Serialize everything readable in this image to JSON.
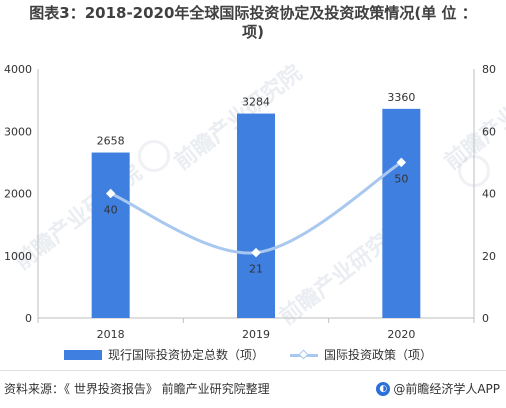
{
  "title": {
    "line1": "图表3：2018-2020年全球国际投资协定及投资政策情况(单 位 ：",
    "line2": "项)"
  },
  "watermark": {
    "text": "前瞻产业研究院"
  },
  "chart_data": {
    "type": "bar",
    "categories": [
      "2018",
      "2019",
      "2020"
    ],
    "series": [
      {
        "name": "现行国际投资协定总数（项）",
        "type": "bar",
        "axis": "left",
        "values": [
          2658,
          3284,
          3360
        ],
        "color": "#3f7fe0"
      },
      {
        "name": "国际投资政策（项）",
        "type": "line",
        "axis": "right",
        "values": [
          40,
          21,
          50
        ],
        "color": "#a9c8f0"
      }
    ],
    "yleft": {
      "min": 0,
      "max": 4000,
      "ticks": [
        0,
        1000,
        2000,
        3000,
        4000
      ]
    },
    "yright": {
      "min": 0,
      "max": 80,
      "ticks": [
        0,
        20,
        40,
        60,
        80
      ]
    },
    "grid": false,
    "legend": "bottom"
  },
  "legend": {
    "bar_label": "现行国际投资协定总数（项）",
    "line_label": "国际投资政策（项）"
  },
  "footer": {
    "source": "资料来源：《 世界投资报告》 前瞻产业研究院整理",
    "brand": "@前瞻经济学人APP",
    "brand_icon": "circle-logo-icon"
  }
}
